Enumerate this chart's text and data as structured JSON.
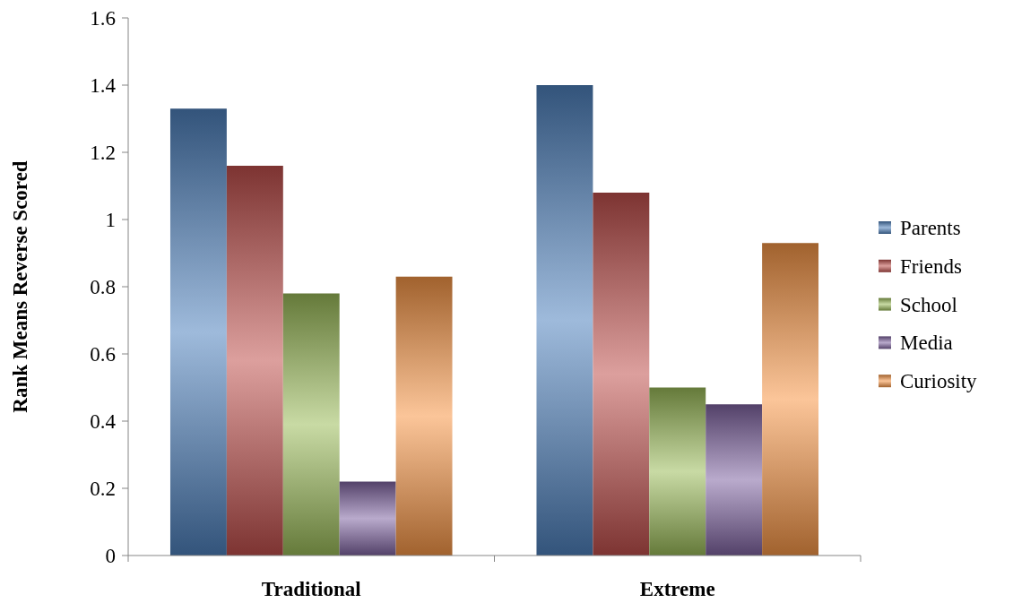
{
  "chart_data": {
    "type": "bar",
    "ylabel": "Rank Means Reverse Scored",
    "categories": [
      "Traditional",
      "Extreme"
    ],
    "series": [
      {
        "name": "Parents",
        "color": "#4f81bd",
        "values": [
          1.33,
          1.4
        ]
      },
      {
        "name": "Friends",
        "color": "#c0504d",
        "values": [
          1.16,
          1.08
        ]
      },
      {
        "name": "School",
        "color": "#9bbb59",
        "values": [
          0.78,
          0.5
        ]
      },
      {
        "name": "Media",
        "color": "#8064a2",
        "values": [
          0.22,
          0.45
        ]
      },
      {
        "name": "Curiosity",
        "color": "#f79646",
        "values": [
          0.83,
          0.93
        ]
      }
    ],
    "ylim": [
      0,
      1.6
    ],
    "yticks": [
      0,
      0.2,
      0.4,
      0.6,
      0.8,
      1,
      1.2,
      1.4,
      1.6
    ],
    "grid": false,
    "legend": "right"
  }
}
